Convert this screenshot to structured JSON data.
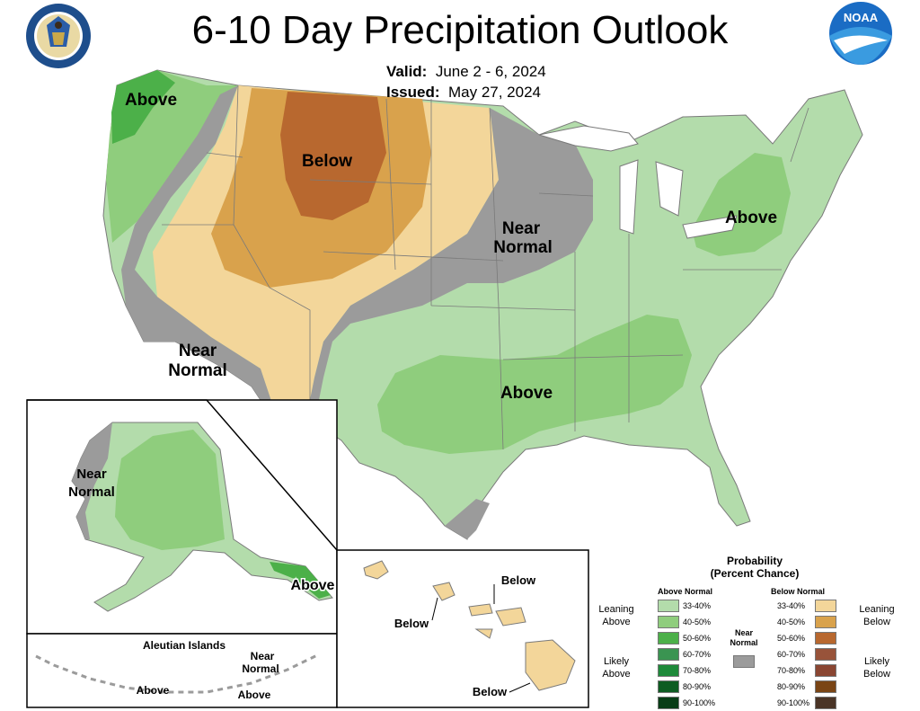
{
  "header": {
    "title": "6-10 Day Precipitation Outlook",
    "valid_label": "Valid:",
    "valid_value": "June 2 - 6, 2024",
    "issued_label": "Issued:",
    "issued_value": "May 27, 2024"
  },
  "logos": {
    "commerce": {
      "icon": "commerce-seal-icon",
      "ring_text": "DEPARTMENT OF COMMERCE • UNITED STATES OF AMERICA"
    },
    "noaa": {
      "icon": "noaa-logo-icon",
      "text": "NOAA"
    }
  },
  "map_labels": {
    "pnw_above": "Above",
    "north_below": "Below",
    "midwest_near": "Near",
    "midwest_normal": "Normal",
    "northeast_above": "Above",
    "southwest_near": "Near",
    "southwest_normal": "Normal",
    "south_above": "Above",
    "alaska_near": "Near",
    "alaska_normal": "Normal",
    "alaska_above": "Above",
    "aleutian_title": "Aleutian Islands",
    "aleutian_near": "Near",
    "aleutian_normal": "Normal",
    "aleutian_above_1": "Above",
    "aleutian_above_2": "Above",
    "hawaii_below_1": "Below",
    "hawaii_below_2": "Below",
    "hawaii_below_3": "Below"
  },
  "legend": {
    "title_line1": "Probability",
    "title_line2": "(Percent Chance)",
    "above_header": "Above Normal",
    "below_header": "Below Normal",
    "near_label_1": "Near",
    "near_label_2": "Normal",
    "near_color": "#9b9b9b",
    "leaning_above_1": "Leaning",
    "leaning_above_2": "Above",
    "likely_above_1": "Likely",
    "likely_above_2": "Above",
    "leaning_below_1": "Leaning",
    "leaning_below_2": "Below",
    "likely_below_1": "Likely",
    "likely_below_2": "Below",
    "above": [
      {
        "range": "33-40%",
        "color": "#b3dcab"
      },
      {
        "range": "40-50%",
        "color": "#8fcd7d"
      },
      {
        "range": "50-60%",
        "color": "#4cb049"
      },
      {
        "range": "60-70%",
        "color": "#3a9451"
      },
      {
        "range": "70-80%",
        "color": "#1e8a3a"
      },
      {
        "range": "80-90%",
        "color": "#0e5c22"
      },
      {
        "range": "90-100%",
        "color": "#083d16"
      }
    ],
    "below": [
      {
        "range": "33-40%",
        "color": "#f3d69a"
      },
      {
        "range": "40-50%",
        "color": "#d9a24c"
      },
      {
        "range": "50-60%",
        "color": "#b8682f"
      },
      {
        "range": "60-70%",
        "color": "#98533a"
      },
      {
        "range": "70-80%",
        "color": "#8a4632"
      },
      {
        "range": "80-90%",
        "color": "#7a4515"
      },
      {
        "range": "90-100%",
        "color": "#4a3426"
      }
    ]
  }
}
